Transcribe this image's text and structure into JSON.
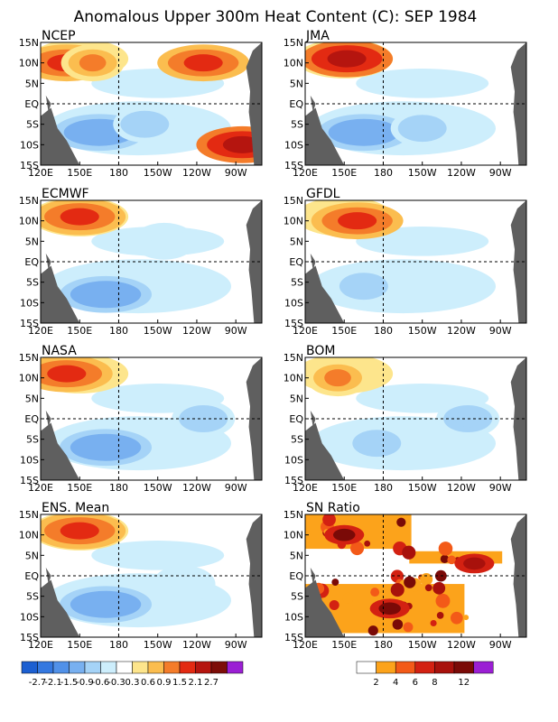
{
  "title": "Anomalous Upper 300m Heat Content (C): SEP 1984",
  "chart_data": {
    "type": "heatmap",
    "title": "Anomalous Upper 300m Heat Content (C): SEP 1984",
    "x_ticks": [
      "120E",
      "150E",
      "180",
      "150W",
      "120W",
      "90W"
    ],
    "y_ticks": [
      "15N",
      "10N",
      "5N",
      "EQ",
      "5S",
      "10S",
      "15S"
    ],
    "xlim": [
      120,
      290
    ],
    "ylim": [
      -15,
      15
    ],
    "grid": "dashed lines at 180 and EQ",
    "panels": [
      {
        "name": "NCEP",
        "field": "anomaly",
        "features": [
          {
            "lon": 140,
            "lat": 10,
            "value": 1.5
          },
          {
            "lon": 160,
            "lat": 10,
            "value": 0.9
          },
          {
            "lon": 245,
            "lat": 10,
            "value": 1.5
          },
          {
            "lon": 275,
            "lat": -10,
            "value": 2.1
          },
          {
            "lon": 165,
            "lat": -7,
            "value": -1.5
          },
          {
            "lon": 200,
            "lat": -5,
            "value": -0.9
          }
        ]
      },
      {
        "name": "JMA",
        "field": "anomaly",
        "features": [
          {
            "lon": 152,
            "lat": 11,
            "value": 2.1
          },
          {
            "lon": 165,
            "lat": -7,
            "value": -1.5
          },
          {
            "lon": 210,
            "lat": -6,
            "value": -0.9
          }
        ]
      },
      {
        "name": "ECMWF",
        "field": "anomaly",
        "features": [
          {
            "lon": 150,
            "lat": 11,
            "value": 1.5
          },
          {
            "lon": 170,
            "lat": -8,
            "value": -1.5
          },
          {
            "lon": 215,
            "lat": 5,
            "value": -0.6
          }
        ]
      },
      {
        "name": "GFDL",
        "field": "anomaly",
        "features": [
          {
            "lon": 160,
            "lat": 10,
            "value": 1.5
          },
          {
            "lon": 165,
            "lat": -6,
            "value": -0.9
          }
        ]
      },
      {
        "name": "NASA",
        "field": "anomaly",
        "features": [
          {
            "lon": 140,
            "lat": 11,
            "value": 1.5
          },
          {
            "lon": 170,
            "lat": -7,
            "value": -1.5
          },
          {
            "lon": 245,
            "lat": 0,
            "value": -0.9
          }
        ]
      },
      {
        "name": "BOM",
        "field": "anomaly",
        "features": [
          {
            "lon": 145,
            "lat": 10,
            "value": 0.9
          },
          {
            "lon": 175,
            "lat": -6,
            "value": -0.9
          },
          {
            "lon": 245,
            "lat": 0,
            "value": -0.9
          }
        ]
      },
      {
        "name": "ENS. Mean",
        "field": "anomaly",
        "features": [
          {
            "lon": 150,
            "lat": 11,
            "value": 1.5
          },
          {
            "lon": 170,
            "lat": -7,
            "value": -1.5
          },
          {
            "lon": 230,
            "lat": -2,
            "value": -0.6
          }
        ]
      },
      {
        "name": "SN Ratio",
        "field": "ratio",
        "features": [
          {
            "lon": 150,
            "lat": 10,
            "value": 12
          },
          {
            "lon": 185,
            "lat": -8,
            "value": 12
          },
          {
            "lon": 250,
            "lat": 3,
            "value": 8
          }
        ]
      }
    ],
    "colorbar_anomaly": {
      "labels": [
        "-2.7",
        "-2.1",
        "-1.5",
        "-0.9",
        "-0.6",
        "-0.3",
        "0.3",
        "0.6",
        "0.9",
        "1.5",
        "2.1",
        "2.7"
      ],
      "colors": [
        "#1c5fd1",
        "#3478e0",
        "#5191e8",
        "#78b0f0",
        "#a5d3f7",
        "#cdeefc",
        "#ffffff",
        "#fde58c",
        "#fbbd4f",
        "#f47c2a",
        "#e32a12",
        "#b5150f",
        "#7d0d08",
        "#9b1fd4"
      ]
    },
    "colorbar_ratio": {
      "labels": [
        "2",
        "4",
        "6",
        "8",
        "12"
      ],
      "colors": [
        "#ffffff",
        "#fca31b",
        "#f35a18",
        "#d32112",
        "#a8110c",
        "#7a0a07",
        "#9b1fd4"
      ]
    }
  }
}
